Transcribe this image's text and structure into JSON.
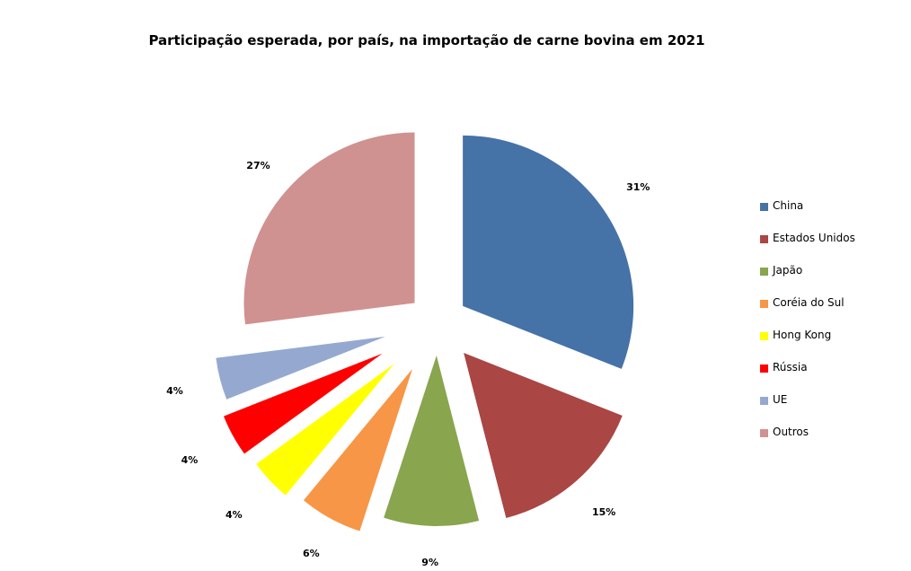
{
  "chart_data": {
    "type": "pie",
    "title": "Participação esperada, por país, na importação de carne bovina em 2021",
    "exploded": true,
    "legend_position": "right",
    "slices": [
      {
        "label": "China",
        "value": 31,
        "value_label": "31%",
        "color": "#4572A7"
      },
      {
        "label": "Estados Unidos",
        "value": 15,
        "value_label": "15%",
        "color": "#AA4643"
      },
      {
        "label": "Japão",
        "value": 9,
        "value_label": "9%",
        "color": "#89A54E"
      },
      {
        "label": "Coréia do Sul",
        "value": 6,
        "value_label": "6%",
        "color": "#F79646"
      },
      {
        "label": "Hong Kong",
        "value": 4,
        "value_label": "4%",
        "color": "#FFFF00"
      },
      {
        "label": "Rússia",
        "value": 4,
        "value_label": "4%",
        "color": "#FF0000"
      },
      {
        "label": "UE",
        "value": 4,
        "value_label": "4%",
        "color": "#95A9D0"
      },
      {
        "label": "Outros",
        "value": 27,
        "value_label": "27%",
        "color": "#D09191"
      }
    ]
  }
}
